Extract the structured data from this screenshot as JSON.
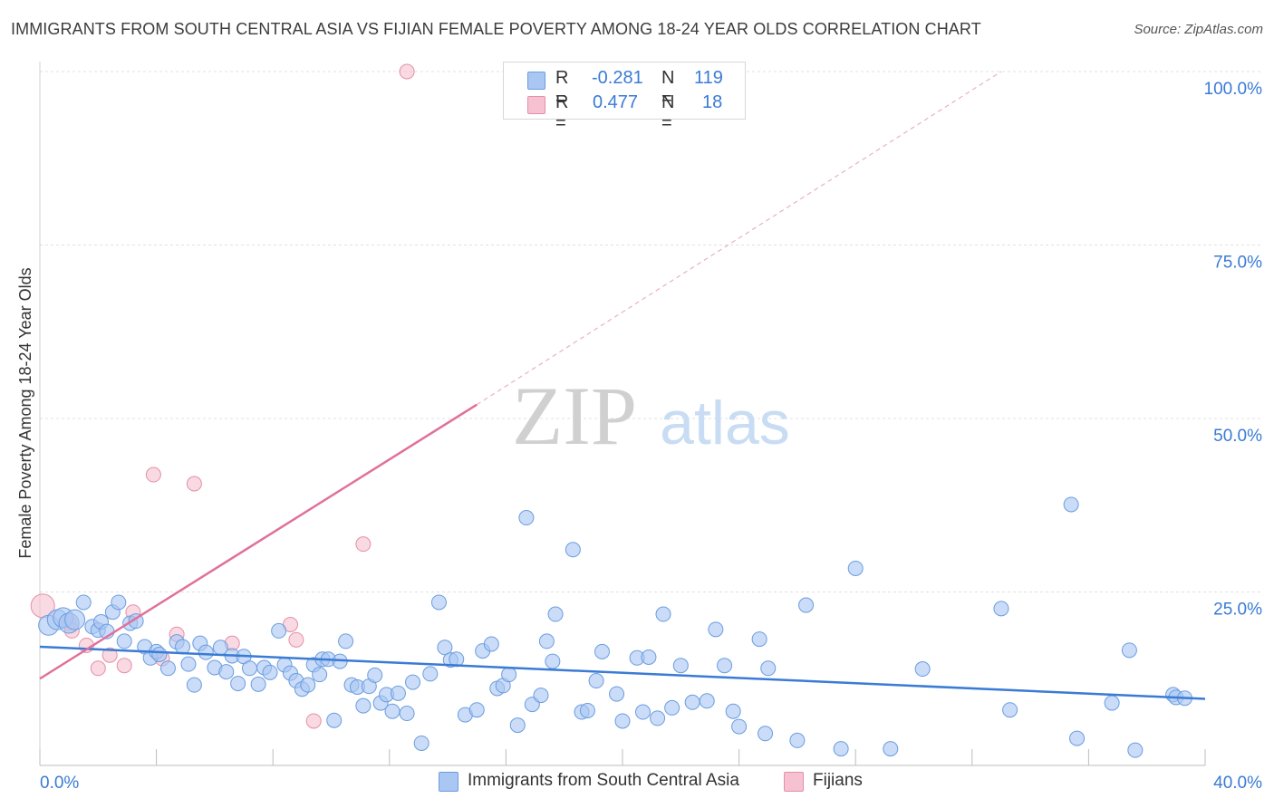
{
  "header": {
    "title": "IMMIGRANTS FROM SOUTH CENTRAL ASIA VS FIJIAN FEMALE POVERTY AMONG 18-24 YEAR OLDS CORRELATION CHART",
    "source": "Source: ZipAtlas.com"
  },
  "watermark": {
    "zip": "ZIP",
    "atlas": "atlas"
  },
  "legend": {
    "r_label": "R =",
    "n_label": "N =",
    "rows": [
      {
        "r": "-0.281",
        "n": "119",
        "color": "#a9c7f2",
        "border": "#6a9de0"
      },
      {
        "r": "0.477",
        "n": "18",
        "color": "#f6c1d0",
        "border": "#e58fa8"
      }
    ]
  },
  "bottom_legend": {
    "items": [
      {
        "label": "Immigrants from South Central Asia",
        "color": "#a9c7f2",
        "border": "#6a9de0"
      },
      {
        "label": "Fijians",
        "color": "#f6c1d0",
        "border": "#e58fa8"
      }
    ]
  },
  "chart_data": {
    "type": "scatter",
    "title": "IMMIGRANTS FROM SOUTH CENTRAL ASIA VS FIJIAN FEMALE POVERTY AMONG 18-24 YEAR OLDS CORRELATION CHART",
    "ylabel": "Female Poverty Among 18-24 Year Olds",
    "xlabel": "",
    "xlim": [
      0,
      40
    ],
    "ylim": [
      0,
      100
    ],
    "x_tick_labels": [
      "0.0%",
      "40.0%"
    ],
    "y_tick_labels": [
      "25.0%",
      "50.0%",
      "75.0%",
      "100.0%"
    ],
    "y_ticks": [
      25,
      50,
      75,
      100
    ],
    "grid": "horizontal dashed",
    "colors": {
      "blue": "#3a7bd5",
      "pink": "#e0709a",
      "tick_label": "#3a7bd5"
    },
    "series": [
      {
        "name": "Immigrants from South Central Asia",
        "color": "#a9c7f2",
        "stroke": "#6a9de0",
        "trend": {
          "x": [
            0,
            40
          ],
          "y": [
            17.1,
            9.6
          ],
          "style": "solid",
          "color": "#3a7bd5"
        },
        "points": [
          [
            0.3,
            20.2
          ],
          [
            0.6,
            21.0
          ],
          [
            0.8,
            21.3
          ],
          [
            1.0,
            20.5
          ],
          [
            1.2,
            21.0
          ],
          [
            1.5,
            23.5
          ],
          [
            1.8,
            20.0
          ],
          [
            2.0,
            19.5
          ],
          [
            2.1,
            20.7
          ],
          [
            2.3,
            19.3
          ],
          [
            2.5,
            22.1
          ],
          [
            2.7,
            23.5
          ],
          [
            2.9,
            17.9
          ],
          [
            3.1,
            20.5
          ],
          [
            3.3,
            20.8
          ],
          [
            3.6,
            17.1
          ],
          [
            3.8,
            15.5
          ],
          [
            4.0,
            16.4
          ],
          [
            4.1,
            16.0
          ],
          [
            4.4,
            14.0
          ],
          [
            4.7,
            17.8
          ],
          [
            4.9,
            17.1
          ],
          [
            5.1,
            14.6
          ],
          [
            5.3,
            11.6
          ],
          [
            5.5,
            17.6
          ],
          [
            5.7,
            16.3
          ],
          [
            6.0,
            14.1
          ],
          [
            6.2,
            17.0
          ],
          [
            6.4,
            13.5
          ],
          [
            6.6,
            15.8
          ],
          [
            6.8,
            11.8
          ],
          [
            7.0,
            15.7
          ],
          [
            7.2,
            14.0
          ],
          [
            7.5,
            11.7
          ],
          [
            7.7,
            14.1
          ],
          [
            7.9,
            13.4
          ],
          [
            8.2,
            19.4
          ],
          [
            8.4,
            14.5
          ],
          [
            8.6,
            13.3
          ],
          [
            8.8,
            12.2
          ],
          [
            9.0,
            11.0
          ],
          [
            9.2,
            11.6
          ],
          [
            9.4,
            14.5
          ],
          [
            9.6,
            13.1
          ],
          [
            9.7,
            15.3
          ],
          [
            9.9,
            15.3
          ],
          [
            10.1,
            6.5
          ],
          [
            10.3,
            15.0
          ],
          [
            10.5,
            17.9
          ],
          [
            10.7,
            11.6
          ],
          [
            10.9,
            11.3
          ],
          [
            11.1,
            8.6
          ],
          [
            11.3,
            11.4
          ],
          [
            11.5,
            13.0
          ],
          [
            11.7,
            9.0
          ],
          [
            11.9,
            10.2
          ],
          [
            12.1,
            7.8
          ],
          [
            12.3,
            10.4
          ],
          [
            12.6,
            7.5
          ],
          [
            12.8,
            12.0
          ],
          [
            13.1,
            3.2
          ],
          [
            13.4,
            13.2
          ],
          [
            13.7,
            23.5
          ],
          [
            13.9,
            17.0
          ],
          [
            14.1,
            15.2
          ],
          [
            14.3,
            15.3
          ],
          [
            14.6,
            7.3
          ],
          [
            15.0,
            8.0
          ],
          [
            15.2,
            16.5
          ],
          [
            15.5,
            17.5
          ],
          [
            15.7,
            11.1
          ],
          [
            15.9,
            11.5
          ],
          [
            16.1,
            13.1
          ],
          [
            16.4,
            5.8
          ],
          [
            16.7,
            35.7
          ],
          [
            16.9,
            8.8
          ],
          [
            17.2,
            10.1
          ],
          [
            17.4,
            17.9
          ],
          [
            17.6,
            15.0
          ],
          [
            17.7,
            21.8
          ],
          [
            18.3,
            31.1
          ],
          [
            18.6,
            7.7
          ],
          [
            18.8,
            7.9
          ],
          [
            19.1,
            12.2
          ],
          [
            19.3,
            16.4
          ],
          [
            19.8,
            10.3
          ],
          [
            20.0,
            6.4
          ],
          [
            20.5,
            15.5
          ],
          [
            20.7,
            7.7
          ],
          [
            20.9,
            15.6
          ],
          [
            21.2,
            6.8
          ],
          [
            21.4,
            21.8
          ],
          [
            21.7,
            8.3
          ],
          [
            22.0,
            14.4
          ],
          [
            22.4,
            9.1
          ],
          [
            22.9,
            9.3
          ],
          [
            23.2,
            19.6
          ],
          [
            23.5,
            14.4
          ],
          [
            23.8,
            7.8
          ],
          [
            24.0,
            5.6
          ],
          [
            24.7,
            18.2
          ],
          [
            24.9,
            4.6
          ],
          [
            25.0,
            14.0
          ],
          [
            26.0,
            3.6
          ],
          [
            26.3,
            23.1
          ],
          [
            27.5,
            2.4
          ],
          [
            28.0,
            28.4
          ],
          [
            29.2,
            2.4
          ],
          [
            30.3,
            13.9
          ],
          [
            33.0,
            22.6
          ],
          [
            33.3,
            8.0
          ],
          [
            35.4,
            37.6
          ],
          [
            35.6,
            3.9
          ],
          [
            36.8,
            9.0
          ],
          [
            37.4,
            16.6
          ],
          [
            37.6,
            2.2
          ],
          [
            38.9,
            10.2
          ],
          [
            39.0,
            9.8
          ],
          [
            39.3,
            9.7
          ]
        ]
      },
      {
        "name": "Fijians",
        "color": "#f6c1d0",
        "stroke": "#e58fa8",
        "trend": {
          "x": [
            0,
            15
          ],
          "y": [
            12.5,
            52.0
          ],
          "style": "solid",
          "extension_to": [
            33,
            100
          ],
          "extension_style": "dashed",
          "color": "#e0709a"
        },
        "points": [
          [
            0.1,
            23.0
          ],
          [
            1.0,
            20.5
          ],
          [
            1.1,
            19.4
          ],
          [
            1.6,
            17.3
          ],
          [
            2.0,
            14.0
          ],
          [
            2.4,
            15.9
          ],
          [
            2.9,
            14.4
          ],
          [
            3.2,
            22.1
          ],
          [
            3.9,
            41.9
          ],
          [
            4.2,
            15.4
          ],
          [
            4.7,
            18.9
          ],
          [
            5.3,
            40.6
          ],
          [
            6.6,
            17.6
          ],
          [
            8.6,
            20.3
          ],
          [
            8.8,
            18.1
          ],
          [
            9.4,
            6.4
          ],
          [
            11.1,
            31.9
          ],
          [
            12.6,
            100.0
          ]
        ]
      }
    ]
  }
}
